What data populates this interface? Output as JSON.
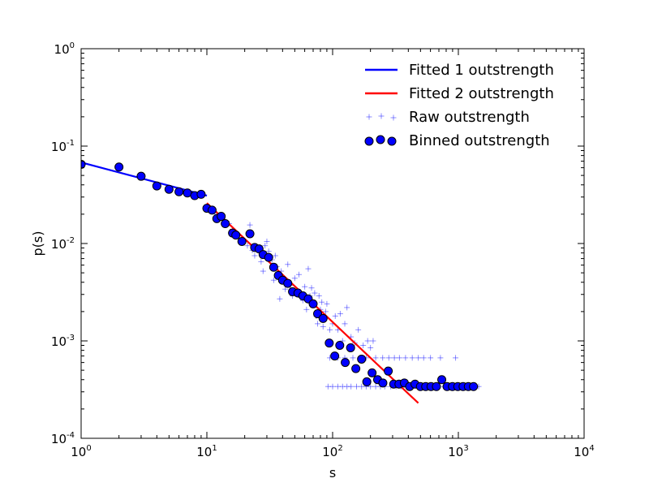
{
  "chart_data": {
    "type": "scatter",
    "xscale": "log",
    "yscale": "log",
    "xlim": [
      1,
      10000
    ],
    "ylim": [
      0.0001,
      1
    ],
    "xlabel": "s",
    "ylabel": "p(s)",
    "x_ticks": [
      {
        "value": 1,
        "base": "10",
        "exp": "0"
      },
      {
        "value": 10,
        "base": "10",
        "exp": "1"
      },
      {
        "value": 100,
        "base": "10",
        "exp": "2"
      },
      {
        "value": 1000,
        "base": "10",
        "exp": "3"
      },
      {
        "value": 10000,
        "base": "10",
        "exp": "4"
      }
    ],
    "y_ticks": [
      {
        "value": 0.0001,
        "base": "10",
        "exp": "-4"
      },
      {
        "value": 0.001,
        "base": "10",
        "exp": "-3"
      },
      {
        "value": 0.01,
        "base": "10",
        "exp": "-2"
      },
      {
        "value": 0.1,
        "base": "10",
        "exp": "-1"
      },
      {
        "value": 1,
        "base": "10",
        "exp": "0"
      }
    ],
    "legend": {
      "position": "top-right",
      "entries": [
        {
          "label": "Fitted 1 outstrength",
          "kind": "line",
          "color": "#0000ff"
        },
        {
          "label": "Fitted 2 outstrength",
          "kind": "line",
          "color": "#ff0000"
        },
        {
          "label": "Raw outstrength",
          "kind": "plus",
          "color": "#0000ff"
        },
        {
          "label": "Binned outstrength",
          "kind": "circle",
          "color": "#0000ff"
        }
      ]
    },
    "series": [
      {
        "name": "Fitted 1 outstrength",
        "kind": "line",
        "color": "#0000ff",
        "points": [
          [
            1,
            0.068
          ],
          [
            10,
            0.031
          ]
        ]
      },
      {
        "name": "Fitted 2 outstrength",
        "kind": "line",
        "color": "#ff0000",
        "points": [
          [
            10,
            0.026
          ],
          [
            480,
            0.00023
          ]
        ]
      },
      {
        "name": "Raw outstrength",
        "kind": "plus",
        "color": "#0000ff",
        "points": [
          [
            12,
            0.02
          ],
          [
            13,
            0.019
          ],
          [
            14,
            0.017
          ],
          [
            15,
            0.016
          ],
          [
            16,
            0.014
          ],
          [
            17,
            0.013
          ],
          [
            18,
            0.012
          ],
          [
            19,
            0.011
          ],
          [
            20,
            0.0105
          ],
          [
            21,
            0.0095
          ],
          [
            22,
            0.0155
          ],
          [
            23,
            0.0085
          ],
          [
            24,
            0.0075
          ],
          [
            25,
            0.0092
          ],
          [
            26,
            0.0088
          ],
          [
            27,
            0.0065
          ],
          [
            28,
            0.0052
          ],
          [
            29,
            0.0095
          ],
          [
            30,
            0.0105
          ],
          [
            31,
            0.0083
          ],
          [
            32,
            0.0072
          ],
          [
            33,
            0.0068
          ],
          [
            34,
            0.0042
          ],
          [
            35,
            0.0075
          ],
          [
            36,
            0.0058
          ],
          [
            37,
            0.0047
          ],
          [
            38,
            0.0027
          ],
          [
            39,
            0.0052
          ],
          [
            40,
            0.0044
          ],
          [
            41,
            0.0039
          ],
          [
            42,
            0.0034
          ],
          [
            44,
            0.0061
          ],
          [
            46,
            0.0037
          ],
          [
            48,
            0.0029
          ],
          [
            50,
            0.0044
          ],
          [
            52,
            0.0032
          ],
          [
            54,
            0.0048
          ],
          [
            56,
            0.0028
          ],
          [
            58,
            0.0026
          ],
          [
            60,
            0.0036
          ],
          [
            62,
            0.0021
          ],
          [
            64,
            0.0055
          ],
          [
            66,
            0.0029
          ],
          [
            68,
            0.0035
          ],
          [
            70,
            0.0024
          ],
          [
            72,
            0.0031
          ],
          [
            74,
            0.0018
          ],
          [
            76,
            0.0015
          ],
          [
            78,
            0.0029
          ],
          [
            80,
            0.0021
          ],
          [
            82,
            0.0025
          ],
          [
            84,
            0.0014
          ],
          [
            86,
            0.0017
          ],
          [
            88,
            0.002
          ],
          [
            90,
            0.0024
          ],
          [
            95,
            0.0013
          ],
          [
            100,
            0.0015
          ],
          [
            105,
            0.0018
          ],
          [
            110,
            0.0013
          ],
          [
            115,
            0.0019
          ],
          [
            120,
            0.001
          ],
          [
            125,
            0.0015
          ],
          [
            130,
            0.0022
          ],
          [
            140,
            0.0011
          ],
          [
            150,
            0.00095
          ],
          [
            160,
            0.0013
          ],
          [
            175,
            0.0009
          ],
          [
            190,
            0.001
          ],
          [
            200,
            0.00085
          ],
          [
            210,
            0.001
          ],
          [
            95,
            0.00067
          ],
          [
            110,
            0.00067
          ],
          [
            125,
            0.00067
          ],
          [
            145,
            0.00067
          ],
          [
            165,
            0.00067
          ],
          [
            185,
            0.00067
          ],
          [
            220,
            0.00067
          ],
          [
            250,
            0.00067
          ],
          [
            280,
            0.00067
          ],
          [
            310,
            0.00067
          ],
          [
            340,
            0.00067
          ],
          [
            380,
            0.00067
          ],
          [
            430,
            0.00067
          ],
          [
            480,
            0.00067
          ],
          [
            530,
            0.00067
          ],
          [
            600,
            0.00067
          ],
          [
            720,
            0.00067
          ],
          [
            950,
            0.00067
          ],
          [
            92,
            0.00034
          ],
          [
            100,
            0.00034
          ],
          [
            110,
            0.00034
          ],
          [
            120,
            0.00034
          ],
          [
            130,
            0.00034
          ],
          [
            140,
            0.00034
          ],
          [
            155,
            0.00034
          ],
          [
            170,
            0.00034
          ],
          [
            185,
            0.00034
          ],
          [
            200,
            0.00034
          ],
          [
            220,
            0.00034
          ],
          [
            240,
            0.00034
          ],
          [
            260,
            0.00034
          ],
          [
            290,
            0.00034
          ],
          [
            320,
            0.00034
          ],
          [
            350,
            0.00034
          ],
          [
            390,
            0.00034
          ],
          [
            430,
            0.00034
          ],
          [
            480,
            0.00034
          ],
          [
            540,
            0.00034
          ],
          [
            600,
            0.00034
          ],
          [
            680,
            0.00034
          ],
          [
            770,
            0.00034
          ],
          [
            870,
            0.00034
          ],
          [
            1000,
            0.00034
          ],
          [
            1150,
            0.00034
          ],
          [
            1320,
            0.00034
          ],
          [
            1450,
            0.00034
          ]
        ]
      },
      {
        "name": "Binned outstrength",
        "kind": "circle",
        "color": "#0000ff",
        "points": [
          [
            1,
            0.065
          ],
          [
            2,
            0.061
          ],
          [
            3,
            0.049
          ],
          [
            4,
            0.039
          ],
          [
            5,
            0.036
          ],
          [
            6,
            0.034
          ],
          [
            7,
            0.033
          ],
          [
            8,
            0.031
          ],
          [
            9,
            0.032
          ],
          [
            10,
            0.023
          ],
          [
            11,
            0.022
          ],
          [
            12,
            0.018
          ],
          [
            13,
            0.019
          ],
          [
            14,
            0.016
          ],
          [
            16,
            0.0128
          ],
          [
            17,
            0.0122
          ],
          [
            19,
            0.0105
          ],
          [
            22,
            0.0126
          ],
          [
            24,
            0.0091
          ],
          [
            26,
            0.0088
          ],
          [
            28,
            0.0077
          ],
          [
            31,
            0.0072
          ],
          [
            34,
            0.0057
          ],
          [
            37,
            0.0047
          ],
          [
            40,
            0.0042
          ],
          [
            44,
            0.0039
          ],
          [
            48,
            0.0032
          ],
          [
            53,
            0.0031
          ],
          [
            58,
            0.0029
          ],
          [
            64,
            0.0027
          ],
          [
            70,
            0.0024
          ],
          [
            76,
            0.0019
          ],
          [
            84,
            0.0017
          ],
          [
            94,
            0.00095
          ],
          [
            104,
            0.0007
          ],
          [
            114,
            0.0009
          ],
          [
            126,
            0.0006
          ],
          [
            139,
            0.00085
          ],
          [
            153,
            0.00052
          ],
          [
            170,
            0.00065
          ],
          [
            187,
            0.00038
          ],
          [
            206,
            0.00047
          ],
          [
            228,
            0.0004
          ],
          [
            251,
            0.00037
          ],
          [
            277,
            0.00049
          ],
          [
            306,
            0.00036
          ],
          [
            337,
            0.00036
          ],
          [
            372,
            0.00037
          ],
          [
            410,
            0.00034
          ],
          [
            452,
            0.00036
          ],
          [
            499,
            0.00034
          ],
          [
            550,
            0.00034
          ],
          [
            606,
            0.00034
          ],
          [
            669,
            0.00034
          ],
          [
            738,
            0.0004
          ],
          [
            813,
            0.00034
          ],
          [
            897,
            0.00034
          ],
          [
            990,
            0.00034
          ],
          [
            1090,
            0.00034
          ],
          [
            1200,
            0.00034
          ],
          [
            1320,
            0.00034
          ]
        ]
      }
    ]
  }
}
